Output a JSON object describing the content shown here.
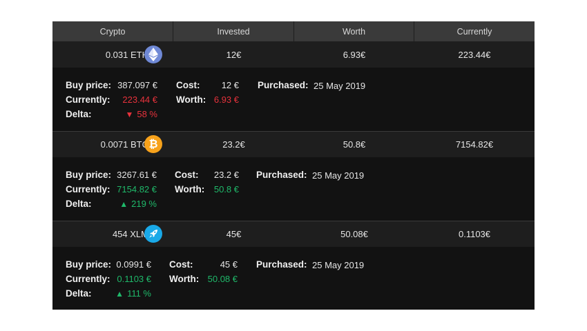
{
  "colors": {
    "down": "#e8323c",
    "up": "#1fb96a",
    "eth": "#6f89d6",
    "btc": "#f7a21b",
    "xlm": "#19a9e8"
  },
  "header": {
    "crypto": "Crypto",
    "invested": "Invested",
    "worth": "Worth",
    "currently": "Currently"
  },
  "labels": {
    "buy_price": "Buy price:",
    "currently": "Currently:",
    "delta": "Delta:",
    "cost": "Cost:",
    "worth": "Worth:",
    "purchased": "Purchased:"
  },
  "rows": [
    {
      "amount": "0.031 ETH",
      "icon": "ethereum-icon",
      "invested": "12€",
      "worth": "6.93€",
      "currently": "223.44€",
      "buy_price": "387.097 €",
      "current_price": "223.44 €",
      "delta_arrow": "▼",
      "delta": "58 %",
      "cost": "12 €",
      "worth_detail": "6.93 €",
      "purchased": "25 May 2019",
      "trend": "down"
    },
    {
      "amount": "0.0071 BTC",
      "icon": "bitcoin-icon",
      "invested": "23.2€",
      "worth": "50.8€",
      "currently": "7154.82€",
      "buy_price": "3267.61 €",
      "current_price": "7154.82 €",
      "delta_arrow": "▲",
      "delta": "219 %",
      "cost": "23.2 €",
      "worth_detail": "50.8 €",
      "purchased": "25 May 2019",
      "trend": "up"
    },
    {
      "amount": "454 XLM",
      "icon": "stellar-rocket-icon",
      "invested": "45€",
      "worth": "50.08€",
      "currently": "0.1103€",
      "buy_price": "0.0991 €",
      "current_price": "0.1103 €",
      "delta_arrow": "▲",
      "delta": "111 %",
      "cost": "45 €",
      "worth_detail": "50.08 €",
      "purchased": "25 May 2019",
      "trend": "up"
    }
  ]
}
